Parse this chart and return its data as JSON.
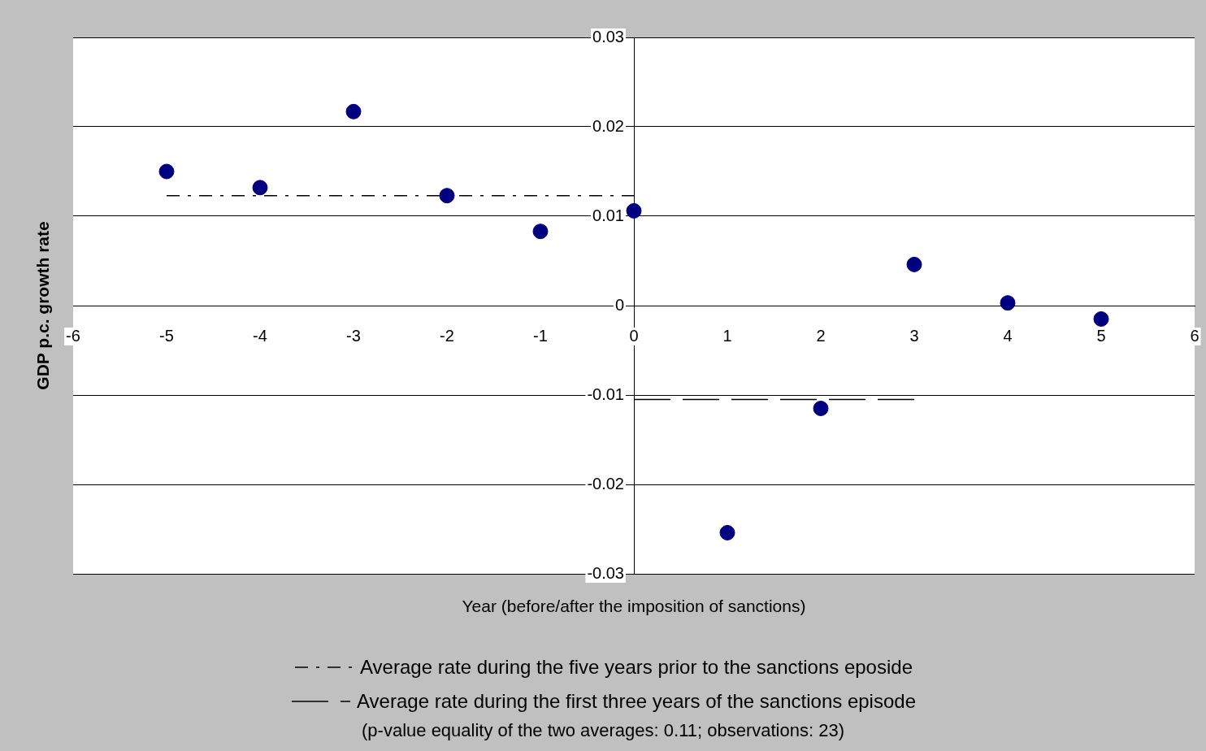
{
  "chart_data": {
    "type": "scatter",
    "xlabel": "Year (before/after the imposition of sanctions)",
    "ylabel": "GDP p.c. growth rate",
    "x": [
      -5,
      -4,
      -3,
      -2,
      -1,
      0,
      1,
      2,
      3,
      4,
      5
    ],
    "series": [
      {
        "color": "#000080",
        "values": [
          0.015,
          0.0132,
          0.0217,
          0.0123,
          0.0083,
          0.0106,
          -0.0254,
          -0.0115,
          0.0046,
          0.0003,
          -0.0015
        ]
      },
      {
        "type": "line",
        "name": "Average rate during the five years prior to the sanctions eposide",
        "color": "#000000",
        "line_style": "dashed",
        "x": [
          -5,
          0
        ],
        "values": [
          0.0123,
          0.0123
        ]
      },
      {
        "type": "line",
        "name": "Average rate during the first three years of the sanctions episode",
        "color": "#000000",
        "line_style": "dashed",
        "x": [
          0,
          3
        ],
        "values": [
          -0.0105,
          -0.0105
        ]
      }
    ],
    "xlim": [
      -6,
      6
    ],
    "xticks": [
      -6,
      -5,
      -4,
      -3,
      -2,
      -1,
      0,
      1,
      2,
      3,
      4,
      5,
      6
    ],
    "ylim": [
      -0.03,
      0.03
    ],
    "yticks": [
      -0.03,
      -0.02,
      -0.01,
      0,
      0.01,
      0.02,
      0.03
    ],
    "grid": "y",
    "legend": "bottom",
    "annotations": [
      "(p-value equality of the two averages: 0.11; observations: 23)"
    ]
  }
}
